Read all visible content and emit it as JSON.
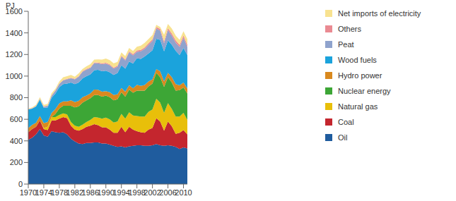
{
  "chart_data": {
    "type": "area",
    "stacked": true,
    "grid": false,
    "legend": "right",
    "y_label": "PJ",
    "x": [
      1970,
      1971,
      1972,
      1973,
      1974,
      1975,
      1976,
      1977,
      1978,
      1979,
      1980,
      1981,
      1982,
      1983,
      1984,
      1985,
      1986,
      1987,
      1988,
      1989,
      1990,
      1991,
      1992,
      1993,
      1994,
      1995,
      1996,
      1997,
      1998,
      1999,
      2000,
      2001,
      2002,
      2003,
      2004,
      2005,
      2006,
      2007,
      2008,
      2009,
      2010,
      2011
    ],
    "xlim": [
      1970,
      2011
    ],
    "xticks": [
      1970,
      1974,
      1978,
      1982,
      1986,
      1990,
      1994,
      1998,
      2002,
      2006,
      2010
    ],
    "ylim": [
      0,
      1600
    ],
    "yticks": [
      0,
      200,
      400,
      600,
      800,
      1000,
      1200,
      1400,
      1600
    ],
    "series": [
      {
        "name": "Oil",
        "color": "#1f5c9e",
        "values": [
          410,
          430,
          460,
          510,
          450,
          440,
          490,
          480,
          475,
          480,
          460,
          420,
          395,
          375,
          370,
          380,
          380,
          385,
          385,
          375,
          375,
          365,
          355,
          345,
          350,
          340,
          350,
          355,
          360,
          360,
          355,
          355,
          360,
          370,
          360,
          355,
          360,
          355,
          345,
          325,
          340,
          330
        ]
      },
      {
        "name": "Coal",
        "color": "#c4262e",
        "values": [
          70,
          80,
          70,
          80,
          60,
          60,
          100,
          110,
          130,
          140,
          150,
          120,
          110,
          120,
          140,
          150,
          160,
          170,
          160,
          150,
          150,
          140,
          120,
          130,
          180,
          140,
          180,
          150,
          130,
          120,
          120,
          150,
          160,
          240,
          220,
          140,
          220,
          180,
          120,
          150,
          160,
          130
        ]
      },
      {
        "name": "Natural gas",
        "color": "#e8bf0a",
        "values": [
          0,
          0,
          0,
          0,
          10,
          30,
          30,
          30,
          35,
          35,
          35,
          35,
          35,
          35,
          40,
          45,
          55,
          65,
          70,
          80,
          90,
          95,
          95,
          105,
          120,
          125,
          135,
          130,
          140,
          145,
          150,
          165,
          170,
          180,
          175,
          165,
          170,
          160,
          160,
          150,
          160,
          135
        ]
      },
      {
        "name": "Nuclear energy",
        "color": "#3da636",
        "values": [
          0,
          0,
          0,
          0,
          0,
          0,
          0,
          30,
          60,
          70,
          80,
          150,
          170,
          190,
          205,
          200,
          200,
          205,
          210,
          205,
          205,
          205,
          205,
          205,
          200,
          205,
          210,
          210,
          235,
          240,
          240,
          235,
          240,
          240,
          235,
          240,
          240,
          245,
          240,
          245,
          235,
          245
        ]
      },
      {
        "name": "Hydro power",
        "color": "#d9891f",
        "values": [
          40,
          38,
          38,
          40,
          45,
          45,
          38,
          45,
          48,
          40,
          40,
          50,
          50,
          50,
          50,
          45,
          45,
          50,
          48,
          45,
          40,
          45,
          50,
          48,
          40,
          45,
          40,
          42,
          55,
          45,
          52,
          45,
          40,
          35,
          55,
          50,
          40,
          50,
          60,
          45,
          45,
          45
        ]
      },
      {
        "name": "Wood fuels",
        "color": "#1ba3dc",
        "values": [
          170,
          150,
          150,
          150,
          140,
          135,
          140,
          145,
          150,
          160,
          165,
          165,
          165,
          170,
          175,
          180,
          175,
          180,
          185,
          190,
          190,
          185,
          185,
          195,
          210,
          215,
          220,
          230,
          245,
          250,
          265,
          260,
          270,
          280,
          290,
          280,
          300,
          300,
          310,
          280,
          320,
          310
        ]
      },
      {
        "name": "Peat",
        "color": "#8fa3cd",
        "values": [
          2,
          3,
          5,
          8,
          10,
          15,
          20,
          25,
          30,
          35,
          40,
          40,
          45,
          55,
          60,
          60,
          60,
          65,
          60,
          65,
          65,
          65,
          60,
          60,
          80,
          75,
          85,
          75,
          60,
          70,
          70,
          80,
          85,
          95,
          85,
          75,
          95,
          85,
          75,
          75,
          95,
          75
        ]
      },
      {
        "name": "Others",
        "color": "#ea8a92",
        "values": [
          2,
          2,
          2,
          2,
          3,
          3,
          3,
          3,
          3,
          4,
          5,
          5,
          5,
          5,
          6,
          6,
          6,
          7,
          7,
          8,
          8,
          8,
          8,
          9,
          10,
          10,
          10,
          11,
          12,
          12,
          14,
          14,
          15,
          15,
          16,
          18,
          18,
          20,
          20,
          20,
          22,
          22
        ]
      },
      {
        "name": "Net imports of electricity",
        "color": "#f8e290",
        "values": [
          5,
          8,
          10,
          15,
          15,
          15,
          20,
          15,
          20,
          25,
          25,
          25,
          20,
          25,
          20,
          25,
          30,
          25,
          30,
          35,
          40,
          40,
          40,
          35,
          30,
          30,
          30,
          30,
          35,
          40,
          42,
          40,
          40,
          20,
          18,
          60,
          40,
          45,
          45,
          45,
          38,
          50
        ]
      }
    ]
  }
}
